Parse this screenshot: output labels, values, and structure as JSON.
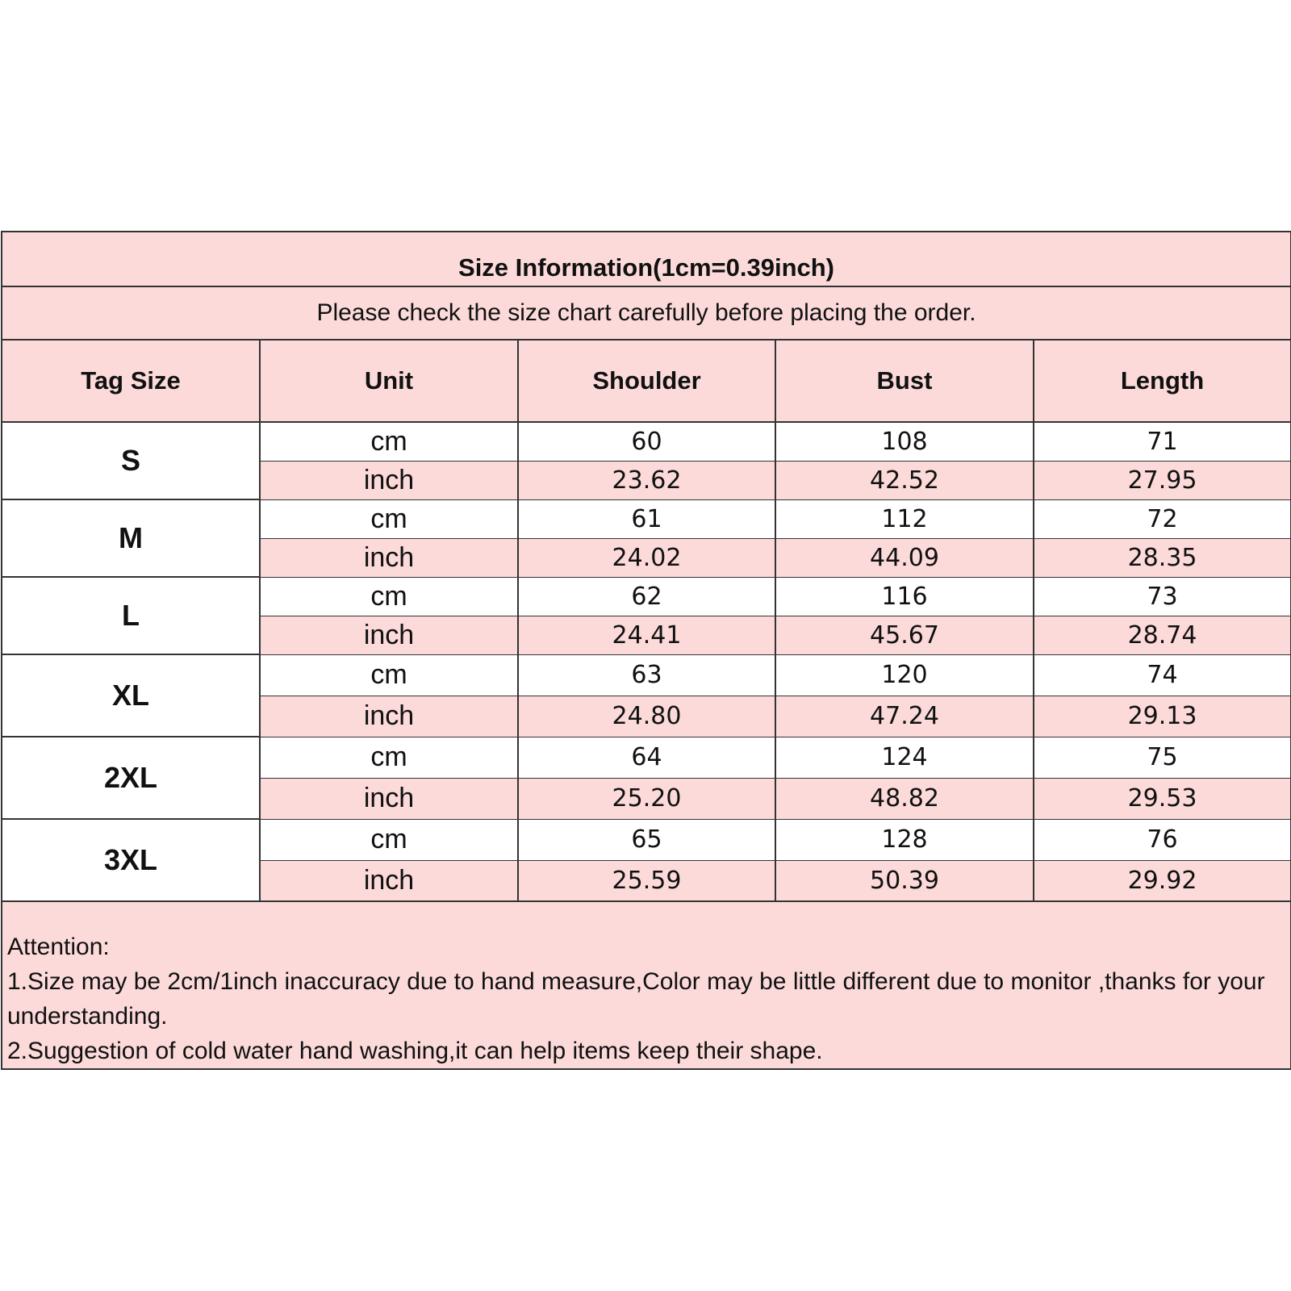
{
  "title": "Size Information(1cm=0.39inch)",
  "subtitle": "Please check the size chart carefully before placing the order.",
  "headers": [
    "Tag Size",
    "Unit",
    "Shoulder",
    "Bust",
    "Length"
  ],
  "rows": [
    {
      "size": "S",
      "cm": {
        "unit": "cm",
        "values": [
          "60",
          "108",
          "71"
        ]
      },
      "inch": {
        "unit": "inch",
        "values": [
          "23.62",
          "42.52",
          "27.95"
        ]
      }
    },
    {
      "size": "M",
      "cm": {
        "unit": "cm",
        "values": [
          "61",
          "112",
          "72"
        ]
      },
      "inch": {
        "unit": "inch",
        "values": [
          "24.02",
          "44.09",
          "28.35"
        ]
      }
    },
    {
      "size": "L",
      "cm": {
        "unit": "cm",
        "values": [
          "62",
          "116",
          "73"
        ]
      },
      "inch": {
        "unit": "inch",
        "values": [
          "24.41",
          "45.67",
          "28.74"
        ]
      }
    },
    {
      "size": "XL",
      "cm": {
        "unit": "cm",
        "values": [
          "63",
          "120",
          "74"
        ]
      },
      "inch": {
        "unit": "inch",
        "values": [
          "24.80",
          "47.24",
          "29.13"
        ]
      }
    },
    {
      "size": "2XL",
      "cm": {
        "unit": "cm",
        "values": [
          "64",
          "124",
          "75"
        ]
      },
      "inch": {
        "unit": "inch",
        "values": [
          "25.20",
          "48.82",
          "29.53"
        ]
      }
    },
    {
      "size": "3XL",
      "cm": {
        "unit": "cm",
        "values": [
          "65",
          "128",
          "76"
        ]
      },
      "inch": {
        "unit": "inch",
        "values": [
          "25.59",
          "50.39",
          "29.92"
        ]
      }
    }
  ],
  "notes": {
    "heading": "Attention:",
    "line1": "1.Size may be 2cm/1inch inaccuracy due to hand measure,Color may be little different due to monitor ,thanks for your understanding.",
    "line2": "2.Suggestion of cold water hand washing,it can help items keep their shape."
  },
  "colors": {
    "pink": "#fcdada",
    "border": "#333333"
  }
}
